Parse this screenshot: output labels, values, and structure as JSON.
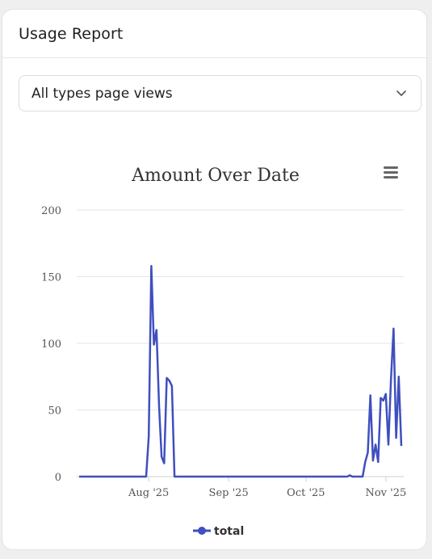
{
  "header": {
    "title": "Usage Report"
  },
  "filter": {
    "selected": "All types page views",
    "icon": "chevron-down-icon"
  },
  "menu": {
    "icon": "hamburger-menu-icon"
  },
  "colors": {
    "series": "#3f4fbf",
    "grid": "#e6e6e6",
    "axis": "#999999"
  },
  "chart_data": {
    "type": "line",
    "title": "Amount Over Date",
    "xlabel": "",
    "ylabel": "",
    "ylim": [
      0,
      200
    ],
    "yticks": [
      "0",
      "50",
      "100",
      "150",
      "200"
    ],
    "xticks": [
      "Aug '25",
      "Sep '25",
      "Oct '25",
      "Nov '25"
    ],
    "xtick_dates": [
      "2025-08-01",
      "2025-09-01",
      "2025-10-01",
      "2025-11-01"
    ],
    "xlim": [
      "2025-07-05",
      "2025-11-07"
    ],
    "grid": true,
    "legend": "bottom-center",
    "series": [
      {
        "name": "total",
        "points": [
          [
            "2025-07-05",
            0
          ],
          [
            "2025-07-31",
            0
          ],
          [
            "2025-08-01",
            30
          ],
          [
            "2025-08-02",
            158
          ],
          [
            "2025-08-03",
            99
          ],
          [
            "2025-08-04",
            110
          ],
          [
            "2025-08-05",
            53
          ],
          [
            "2025-08-06",
            15
          ],
          [
            "2025-08-07",
            10
          ],
          [
            "2025-08-08",
            74
          ],
          [
            "2025-08-09",
            72
          ],
          [
            "2025-08-10",
            68
          ],
          [
            "2025-08-11",
            0
          ],
          [
            "2025-10-17",
            0
          ],
          [
            "2025-10-18",
            1
          ],
          [
            "2025-10-19",
            0
          ],
          [
            "2025-10-23",
            0
          ],
          [
            "2025-10-24",
            11
          ],
          [
            "2025-10-25",
            18
          ],
          [
            "2025-10-26",
            61
          ],
          [
            "2025-10-27",
            12
          ],
          [
            "2025-10-28",
            24
          ],
          [
            "2025-10-29",
            11
          ],
          [
            "2025-10-30",
            59
          ],
          [
            "2025-10-31",
            57
          ],
          [
            "2025-11-01",
            62
          ],
          [
            "2025-11-02",
            24
          ],
          [
            "2025-11-03",
            73
          ],
          [
            "2025-11-04",
            111
          ],
          [
            "2025-11-05",
            29
          ],
          [
            "2025-11-06",
            75
          ],
          [
            "2025-11-07",
            23
          ]
        ]
      }
    ]
  }
}
